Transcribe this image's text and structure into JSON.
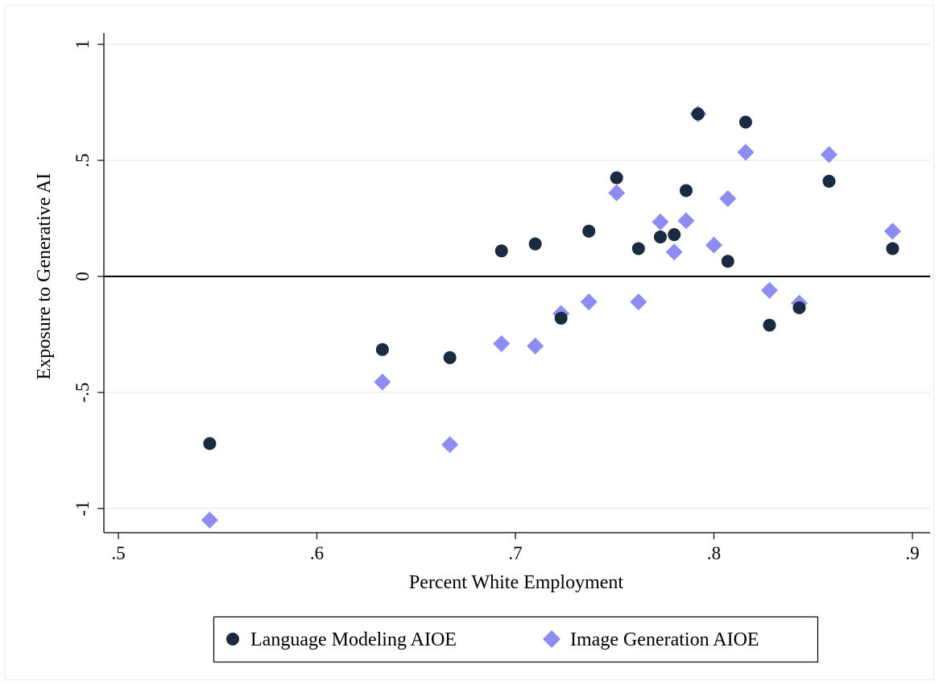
{
  "chart_data": {
    "type": "scatter",
    "title": "",
    "xlabel": "Percent White Employment",
    "ylabel": "Exposure to Generative AI",
    "xlim": [
      0.5,
      0.9
    ],
    "ylim": [
      -1,
      1
    ],
    "x_ticks": [
      0.5,
      0.6,
      0.7,
      0.8,
      0.9
    ],
    "x_tick_labels": [
      ".5",
      ".6",
      ".7",
      ".8",
      ".9"
    ],
    "y_ticks": [
      -1,
      -0.5,
      0,
      0.5,
      1
    ],
    "y_tick_labels": [
      "-1",
      "-.5",
      "0",
      ".5",
      "1"
    ],
    "grid": "horizontal",
    "zero_line": true,
    "legend_position": "bottom",
    "series": [
      {
        "name": "Language Modeling AIOE",
        "marker": "circle",
        "color": "#1a2a40",
        "x": [
          0.546,
          0.633,
          0.667,
          0.693,
          0.71,
          0.723,
          0.737,
          0.751,
          0.762,
          0.773,
          0.78,
          0.786,
          0.792,
          0.807,
          0.816,
          0.828,
          0.843,
          0.858,
          0.89
        ],
        "y": [
          -0.72,
          -0.315,
          -0.35,
          0.11,
          0.14,
          -0.18,
          0.195,
          0.425,
          0.12,
          0.17,
          0.18,
          0.37,
          0.7,
          0.065,
          0.665,
          -0.21,
          -0.135,
          0.41,
          0.12
        ]
      },
      {
        "name": "Image Generation AIOE",
        "marker": "diamond",
        "color": "#8e8cf2",
        "x": [
          0.546,
          0.633,
          0.667,
          0.693,
          0.71,
          0.723,
          0.737,
          0.751,
          0.762,
          0.773,
          0.78,
          0.786,
          0.792,
          0.8,
          0.807,
          0.816,
          0.828,
          0.843,
          0.858,
          0.89
        ],
        "y": [
          -1.05,
          -0.455,
          -0.725,
          -0.29,
          -0.3,
          -0.16,
          -0.11,
          0.36,
          -0.11,
          0.235,
          0.105,
          0.24,
          0.7,
          0.135,
          0.335,
          0.535,
          -0.06,
          -0.115,
          0.525,
          0.195
        ]
      }
    ]
  }
}
